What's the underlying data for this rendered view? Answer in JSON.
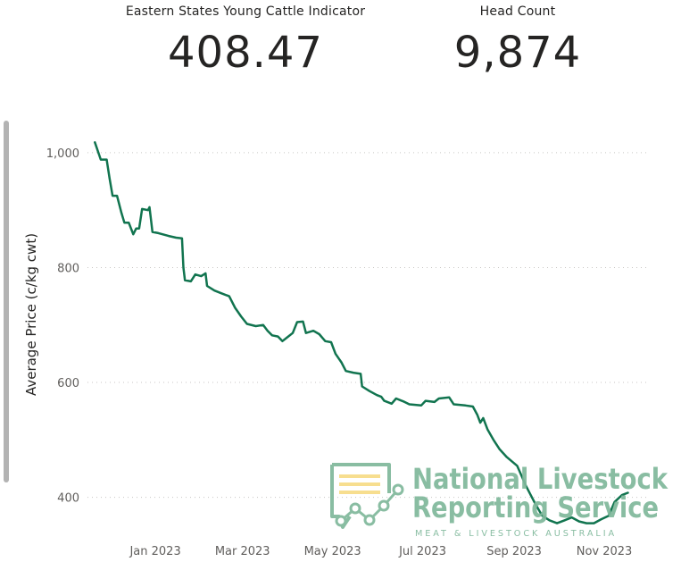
{
  "kpis": [
    {
      "label": "Eastern States Young Cattle Indicator",
      "value": "408.47"
    },
    {
      "label": "Head Count",
      "value": "9,874"
    }
  ],
  "logo": {
    "line1": "National Livestock",
    "line2": "Reporting Service",
    "tagline": "MEAT & LIVESTOCK AUSTRALIA"
  },
  "colors": {
    "line": "#11744f",
    "logo": "#7fb89b",
    "logo_accent": "#f7dc86"
  },
  "chart_data": {
    "type": "line",
    "ylabel": "Average Price (c/kg cwt)",
    "yticks": [
      {
        "label": "1,000",
        "value": 1000
      },
      {
        "label": "800",
        "value": 800
      },
      {
        "label": "600",
        "value": 600
      },
      {
        "label": "400",
        "value": 400
      }
    ],
    "xticks": [
      {
        "label": "Jan 2023",
        "date": "2023-01-01"
      },
      {
        "label": "Mar 2023",
        "date": "2023-03-01"
      },
      {
        "label": "May 2023",
        "date": "2023-05-01"
      },
      {
        "label": "Jul 2023",
        "date": "2023-07-01"
      },
      {
        "label": "Sep 2023",
        "date": "2023-09-01"
      },
      {
        "label": "Nov 2023",
        "date": "2023-11-01"
      }
    ],
    "ylim": [
      345,
      1020
    ],
    "xlim": [
      "2022-11-16",
      "2023-11-30"
    ],
    "grid": true,
    "series": [
      {
        "points": [
          [
            "2022-11-21",
            1018
          ],
          [
            "2022-11-25",
            988
          ],
          [
            "2022-11-29",
            988
          ],
          [
            "2022-12-01",
            955
          ],
          [
            "2022-12-03",
            925
          ],
          [
            "2022-12-06",
            925
          ],
          [
            "2022-12-09",
            895
          ],
          [
            "2022-12-11",
            878
          ],
          [
            "2022-12-14",
            878
          ],
          [
            "2022-12-17",
            858
          ],
          [
            "2022-12-19",
            868
          ],
          [
            "2022-12-21",
            868
          ],
          [
            "2022-12-23",
            902
          ],
          [
            "2022-12-27",
            900
          ],
          [
            "2022-12-28",
            905
          ],
          [
            "2022-12-30",
            862
          ],
          [
            "2023-01-03",
            860
          ],
          [
            "2023-01-10",
            855
          ],
          [
            "2023-01-15",
            852
          ],
          [
            "2023-01-19",
            851
          ],
          [
            "2023-01-20",
            800
          ],
          [
            "2023-01-21",
            778
          ],
          [
            "2023-01-25",
            776
          ],
          [
            "2023-01-28",
            788
          ],
          [
            "2023-02-01",
            785
          ],
          [
            "2023-02-04",
            790
          ],
          [
            "2023-02-05",
            768
          ],
          [
            "2023-02-10",
            760
          ],
          [
            "2023-02-15",
            755
          ],
          [
            "2023-02-20",
            750
          ],
          [
            "2023-02-24",
            730
          ],
          [
            "2023-02-28",
            715
          ],
          [
            "2023-03-04",
            702
          ],
          [
            "2023-03-10",
            698
          ],
          [
            "2023-03-15",
            700
          ],
          [
            "2023-03-18",
            690
          ],
          [
            "2023-03-21",
            682
          ],
          [
            "2023-03-25",
            680
          ],
          [
            "2023-03-28",
            672
          ],
          [
            "2023-04-01",
            680
          ],
          [
            "2023-04-04",
            686
          ],
          [
            "2023-04-07",
            705
          ],
          [
            "2023-04-11",
            706
          ],
          [
            "2023-04-13",
            686
          ],
          [
            "2023-04-18",
            690
          ],
          [
            "2023-04-22",
            684
          ],
          [
            "2023-04-26",
            672
          ],
          [
            "2023-04-30",
            670
          ],
          [
            "2023-05-03",
            650
          ],
          [
            "2023-05-07",
            635
          ],
          [
            "2023-05-10",
            620
          ],
          [
            "2023-05-15",
            617
          ],
          [
            "2023-05-20",
            615
          ],
          [
            "2023-05-21",
            593
          ],
          [
            "2023-05-26",
            585
          ],
          [
            "2023-05-31",
            578
          ],
          [
            "2023-06-03",
            575
          ],
          [
            "2023-06-05",
            568
          ],
          [
            "2023-06-10",
            563
          ],
          [
            "2023-06-13",
            572
          ],
          [
            "2023-06-18",
            567
          ],
          [
            "2023-06-22",
            562
          ],
          [
            "2023-06-30",
            560
          ],
          [
            "2023-07-03",
            568
          ],
          [
            "2023-07-09",
            566
          ],
          [
            "2023-07-12",
            572
          ],
          [
            "2023-07-19",
            574
          ],
          [
            "2023-07-22",
            562
          ],
          [
            "2023-07-30",
            560
          ],
          [
            "2023-08-04",
            558
          ],
          [
            "2023-08-07",
            544
          ],
          [
            "2023-08-09",
            530
          ],
          [
            "2023-08-11",
            538
          ],
          [
            "2023-08-14",
            518
          ],
          [
            "2023-08-18",
            500
          ],
          [
            "2023-08-22",
            484
          ],
          [
            "2023-08-27",
            470
          ],
          [
            "2023-09-03",
            455
          ],
          [
            "2023-09-09",
            420
          ],
          [
            "2023-09-15",
            390
          ],
          [
            "2023-09-20",
            368
          ],
          [
            "2023-09-25",
            360
          ],
          [
            "2023-09-30",
            355
          ],
          [
            "2023-10-05",
            360
          ],
          [
            "2023-10-10",
            365
          ],
          [
            "2023-10-15",
            358
          ],
          [
            "2023-10-20",
            355
          ],
          [
            "2023-10-25",
            355
          ],
          [
            "2023-10-30",
            362
          ],
          [
            "2023-11-04",
            368
          ],
          [
            "2023-11-08",
            392
          ],
          [
            "2023-11-13",
            404
          ],
          [
            "2023-11-17",
            408
          ]
        ]
      }
    ]
  }
}
